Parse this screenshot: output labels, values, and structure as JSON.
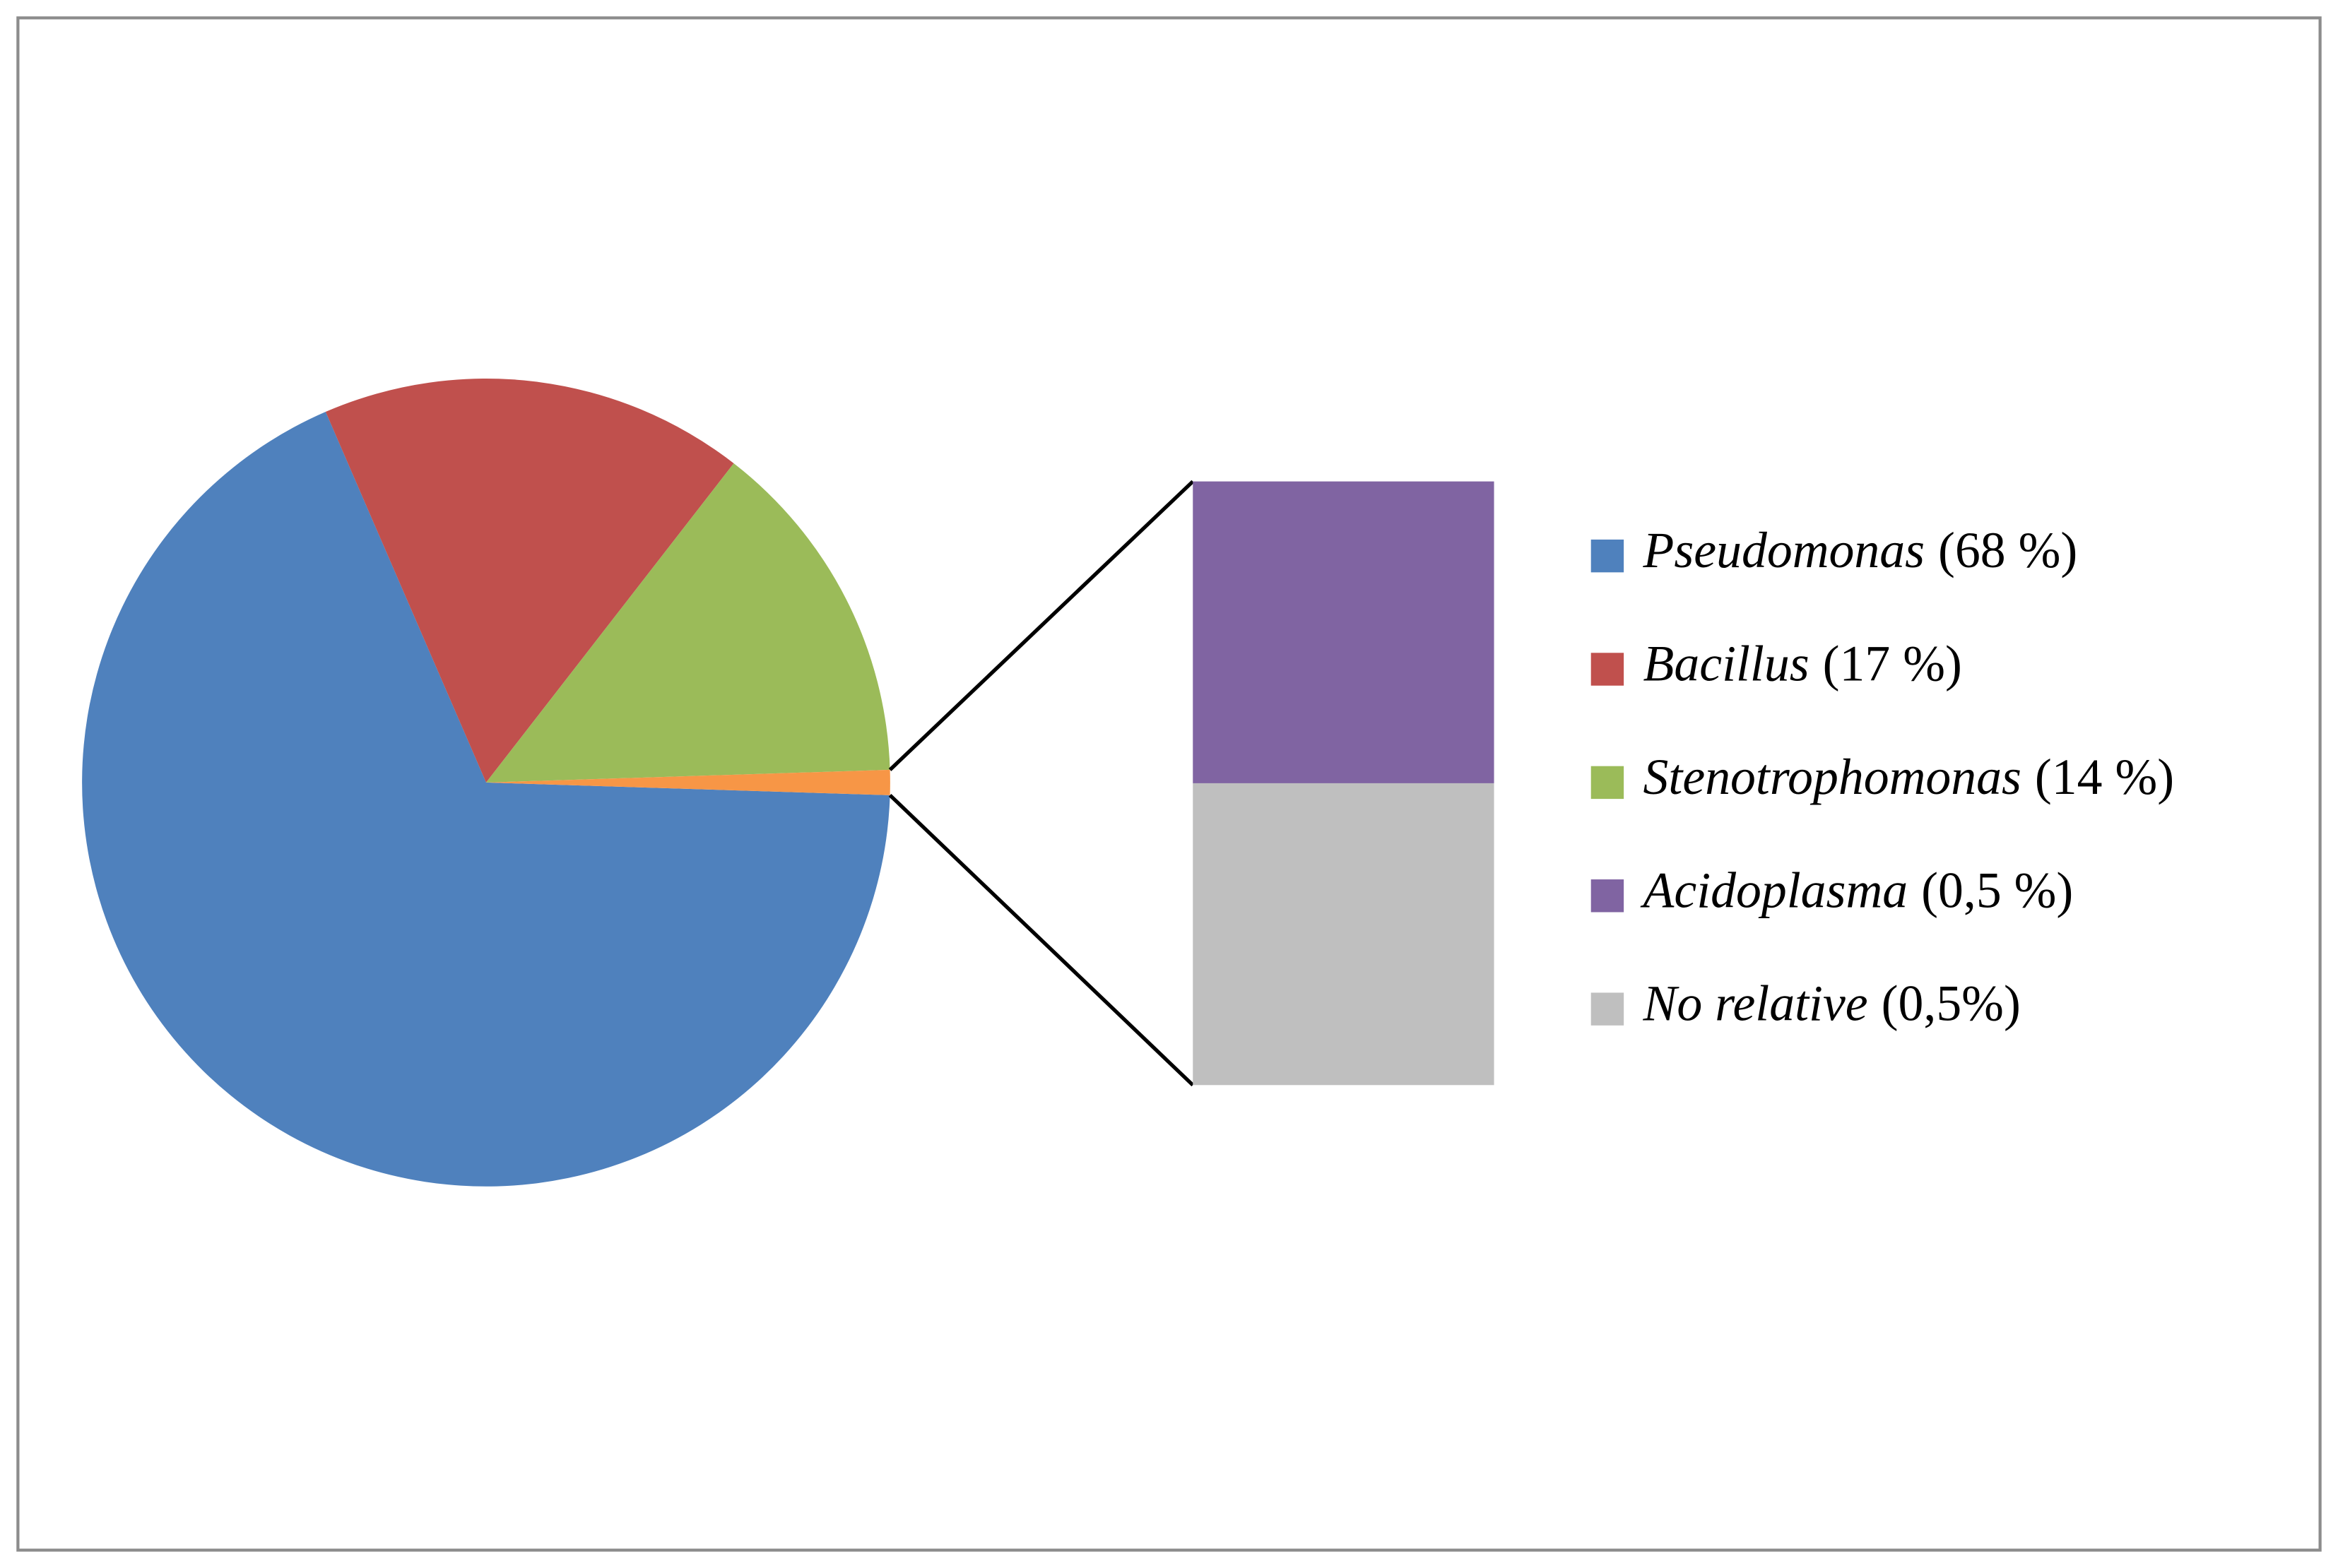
{
  "chart_data": {
    "type": "bar-of-pie",
    "categories": [
      "Pseudomonas",
      "Bacillus",
      "Stenotrophomonas",
      "Acidoplasma",
      "No relative"
    ],
    "values": [
      68,
      17,
      14,
      0.5,
      0.5
    ],
    "value_labels": [
      "(68 %)",
      "(17 %)",
      "(14 %)",
      "(0,5 %)",
      "(0,5%)"
    ],
    "colors": [
      "#4f81bd",
      "#c0504d",
      "#9bbb59",
      "#8064a2",
      "#bfbfbf"
    ],
    "other_color": "#f79646",
    "secondary_count": 2,
    "legend": "right"
  }
}
